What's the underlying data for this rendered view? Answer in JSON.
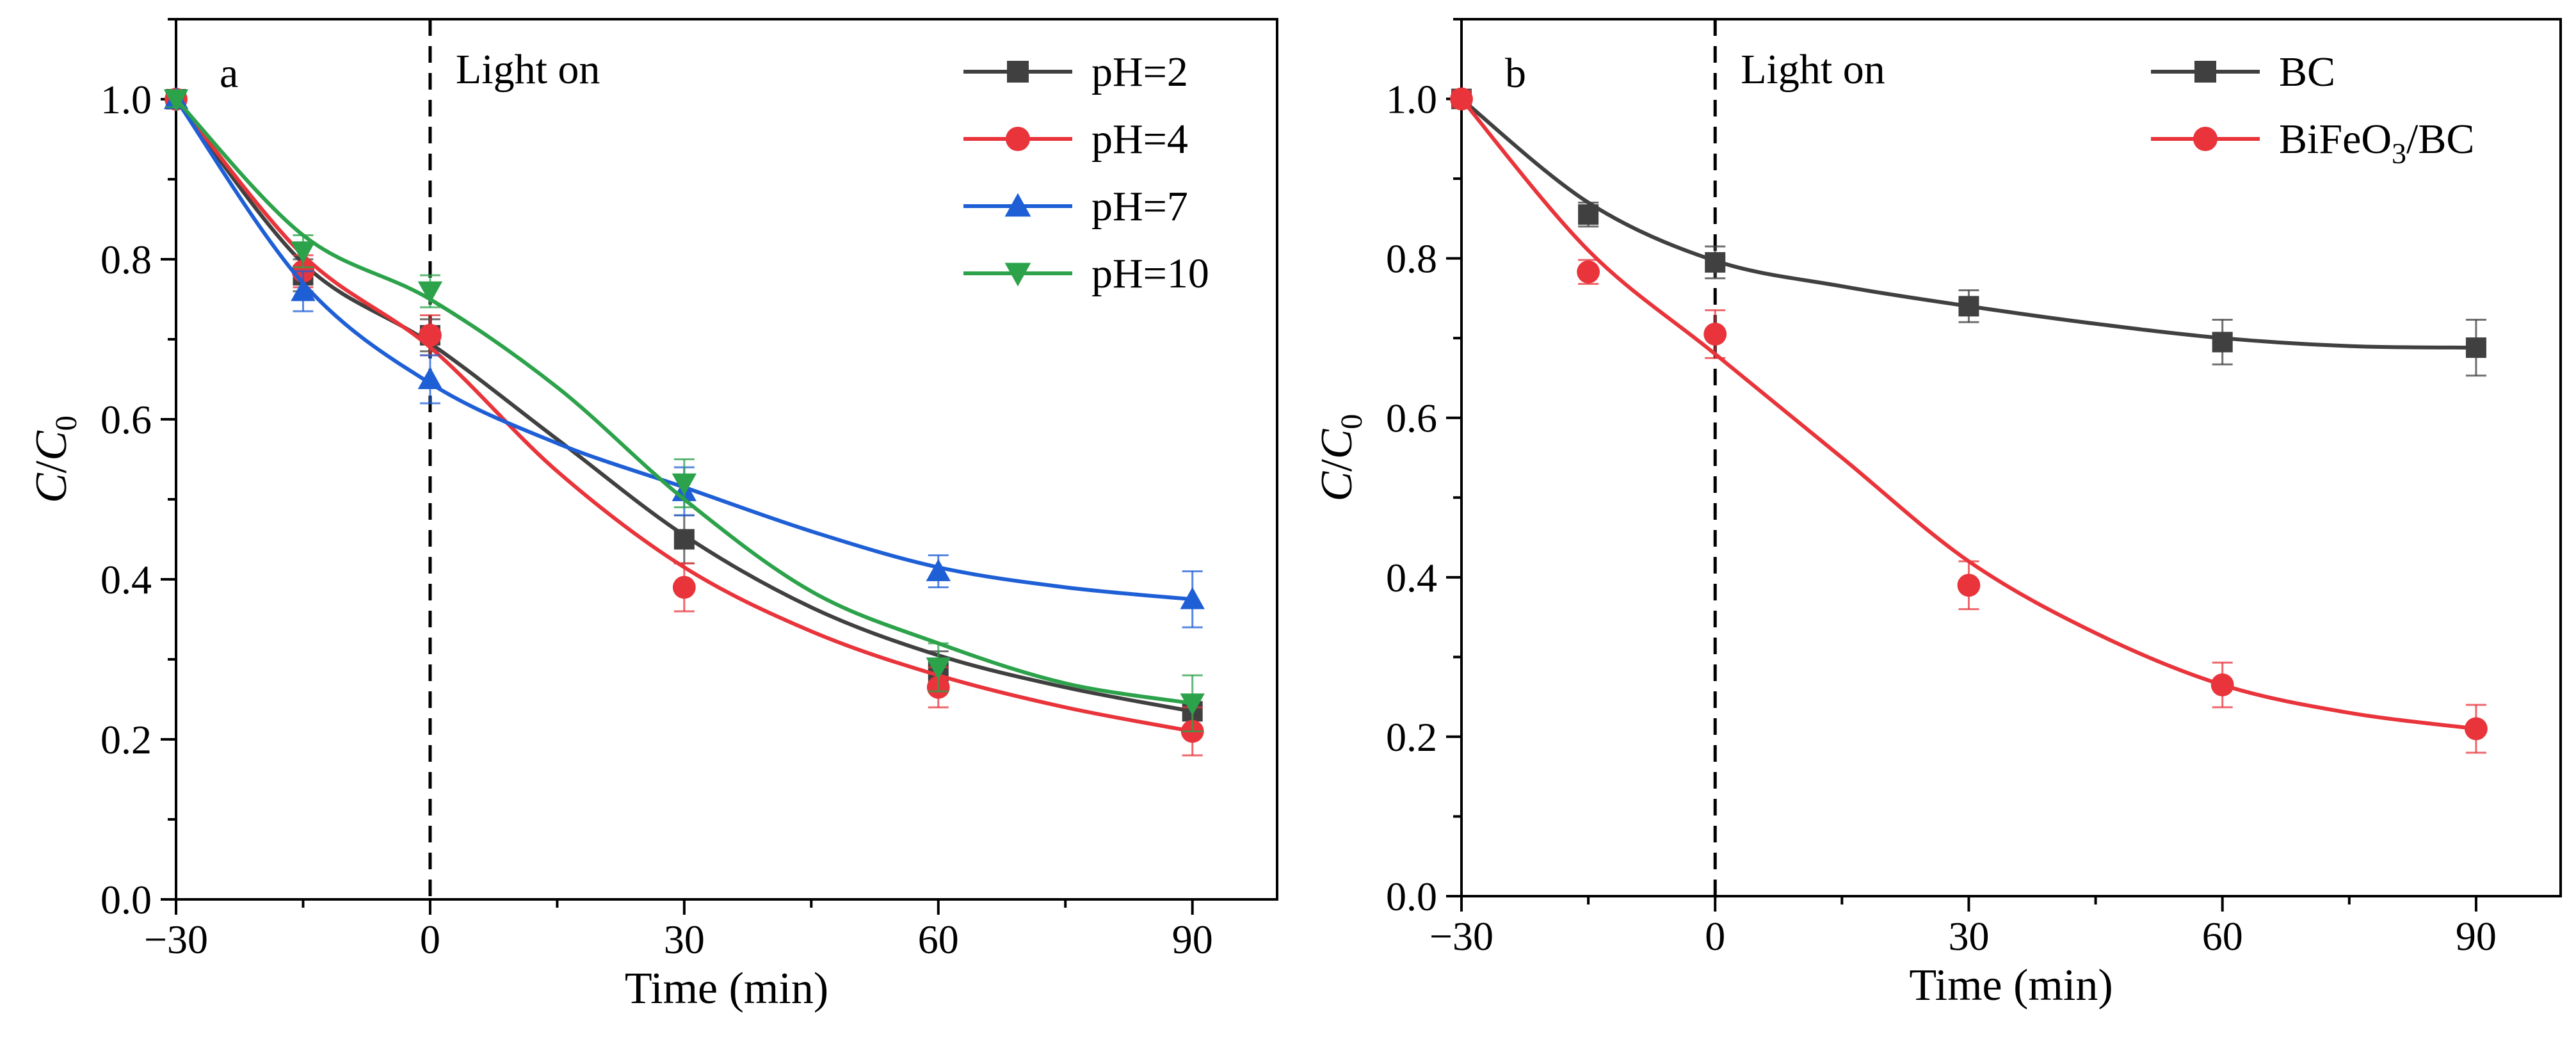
{
  "chart_data": [
    {
      "type": "scatter",
      "panel_label": "a",
      "annotation": "Light on",
      "xlabel": "Time (min)",
      "ylabel": {
        "main": "C",
        "slash": "/",
        "sub_main": "C",
        "sub": "0"
      },
      "xlim": [
        -30,
        100
      ],
      "ylim": [
        0,
        1.1
      ],
      "xticks": [
        -30,
        0,
        30,
        60,
        90
      ],
      "xtick_labels": [
        "−30",
        "0",
        "30",
        "60",
        "90"
      ],
      "yticks": [
        0.0,
        0.2,
        0.4,
        0.6,
        0.8,
        1.0
      ],
      "ytick_labels": [
        "0.0",
        "0.2",
        "0.4",
        "0.6",
        "0.8",
        "1.0"
      ],
      "vline_x": 0,
      "legend_position": "top-right",
      "x": [
        -30,
        -15,
        0,
        30,
        60,
        90
      ],
      "series": [
        {
          "name": "pH=2",
          "label_main": "pH=2",
          "color": "#404040",
          "marker": "square",
          "values": [
            1.0,
            0.78,
            0.705,
            0.45,
            0.285,
            0.235
          ],
          "errors": [
            0.01,
            0.02,
            0.02,
            0.03,
            0.025,
            0.02
          ],
          "fit": [
            [
              -30,
              1.0
            ],
            [
              -15,
              0.795
            ],
            [
              0,
              0.695
            ],
            [
              15,
              0.575
            ],
            [
              30,
              0.455
            ],
            [
              45,
              0.365
            ],
            [
              60,
              0.305
            ],
            [
              75,
              0.265
            ],
            [
              90,
              0.235
            ]
          ]
        },
        {
          "name": "pH=4",
          "label_main": "pH=4",
          "color": "#e8343a",
          "marker": "circle",
          "values": [
            1.0,
            0.785,
            0.705,
            0.39,
            0.265,
            0.21
          ],
          "errors": [
            0.01,
            0.02,
            0.025,
            0.03,
            0.025,
            0.03
          ],
          "fit": [
            [
              -30,
              1.0
            ],
            [
              -15,
              0.805
            ],
            [
              0,
              0.69
            ],
            [
              15,
              0.535
            ],
            [
              30,
              0.415
            ],
            [
              45,
              0.335
            ],
            [
              60,
              0.28
            ],
            [
              75,
              0.24
            ],
            [
              90,
              0.21
            ]
          ]
        },
        {
          "name": "pH=7",
          "label_main": "pH=7",
          "color": "#1f5fd6",
          "marker": "triangle-up",
          "values": [
            1.0,
            0.76,
            0.65,
            0.51,
            0.41,
            0.375
          ],
          "errors": [
            0.01,
            0.025,
            0.03,
            0.03,
            0.02,
            0.035
          ],
          "fit": [
            [
              -30,
              1.0
            ],
            [
              -15,
              0.77
            ],
            [
              0,
              0.645
            ],
            [
              15,
              0.57
            ],
            [
              30,
              0.515
            ],
            [
              45,
              0.46
            ],
            [
              60,
              0.415
            ],
            [
              75,
              0.39
            ],
            [
              90,
              0.375
            ]
          ]
        },
        {
          "name": "pH=10",
          "label_main": "pH=10",
          "color": "#2ca24a",
          "marker": "triangle-down",
          "values": [
            1.0,
            0.81,
            0.76,
            0.52,
            0.29,
            0.245
          ],
          "errors": [
            0.01,
            0.02,
            0.02,
            0.03,
            0.03,
            0.035
          ],
          "fit": [
            [
              -30,
              1.0
            ],
            [
              -15,
              0.83
            ],
            [
              0,
              0.75
            ],
            [
              15,
              0.64
            ],
            [
              30,
              0.5
            ],
            [
              45,
              0.385
            ],
            [
              60,
              0.32
            ],
            [
              75,
              0.27
            ],
            [
              90,
              0.245
            ]
          ]
        }
      ]
    },
    {
      "type": "scatter",
      "panel_label": "b",
      "annotation": "Light on",
      "xlabel": "Time (min)",
      "ylabel": {
        "main": "C",
        "slash": "/",
        "sub_main": "C",
        "sub": "0"
      },
      "xlim": [
        -30,
        100
      ],
      "ylim": [
        0,
        1.1
      ],
      "xticks": [
        -30,
        0,
        30,
        60,
        90
      ],
      "xtick_labels": [
        "−30",
        "0",
        "30",
        "60",
        "90"
      ],
      "yticks": [
        0.0,
        0.2,
        0.4,
        0.6,
        0.8,
        1.0
      ],
      "ytick_labels": [
        "0.0",
        "0.2",
        "0.4",
        "0.6",
        "0.8",
        "1.0"
      ],
      "vline_x": 0,
      "legend_position": "top-right",
      "x": [
        -30,
        -15,
        0,
        30,
        60,
        90
      ],
      "series": [
        {
          "name": "BC",
          "label_main": "BC",
          "color": "#404040",
          "marker": "square",
          "values": [
            1.0,
            0.855,
            0.795,
            0.74,
            0.695,
            0.688
          ],
          "errors": [
            0.01,
            0.015,
            0.02,
            0.02,
            0.028,
            0.035
          ],
          "fit": [
            [
              -30,
              1.0
            ],
            [
              -15,
              0.87
            ],
            [
              0,
              0.797
            ],
            [
              15,
              0.765
            ],
            [
              30,
              0.74
            ],
            [
              45,
              0.718
            ],
            [
              60,
              0.7
            ],
            [
              75,
              0.69
            ],
            [
              90,
              0.688
            ]
          ]
        },
        {
          "name": "BiFeO3/BC",
          "label_main": "BiFeO",
          "label_sub": "3",
          "label_tail": "/BC",
          "color": "#e8343a",
          "marker": "circle",
          "values": [
            1.0,
            0.783,
            0.705,
            0.39,
            0.265,
            0.21
          ],
          "errors": [
            0.01,
            0.015,
            0.03,
            0.03,
            0.028,
            0.03
          ],
          "fit": [
            [
              -30,
              1.0
            ],
            [
              -15,
              0.81
            ],
            [
              0,
              0.68
            ],
            [
              15,
              0.55
            ],
            [
              30,
              0.42
            ],
            [
              45,
              0.33
            ],
            [
              60,
              0.265
            ],
            [
              75,
              0.23
            ],
            [
              90,
              0.21
            ]
          ]
        }
      ]
    }
  ]
}
